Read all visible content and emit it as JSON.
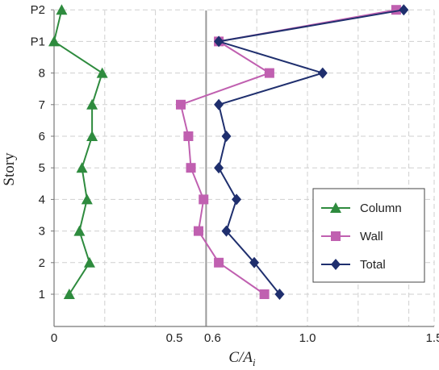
{
  "chart_data": {
    "type": "line",
    "orientation": "horizontal-value-axis",
    "xlabel_main": "C/A",
    "xlabel_sub": "i",
    "ylabel": "Story",
    "xlim": [
      0,
      1.5
    ],
    "x_ticks": [
      {
        "value": 0,
        "label": "0"
      },
      {
        "value": 0.5,
        "label": "0.5"
      },
      {
        "value": 0.6,
        "label": "0.6"
      },
      {
        "value": 1.0,
        "label": "1.0"
      },
      {
        "value": 1.5,
        "label": "1.5"
      }
    ],
    "categories": [
      "1",
      "2",
      "3",
      "4",
      "5",
      "6",
      "7",
      "8",
      "P1",
      "P2"
    ],
    "reference_line": {
      "x": 0.6,
      "color": "#999999"
    },
    "grid": true,
    "legend_position": "bottom-right",
    "series": [
      {
        "name": "Column",
        "color": "#2e8b3e",
        "marker": "triangle",
        "values": [
          0.06,
          0.14,
          0.1,
          0.13,
          0.11,
          0.15,
          0.15,
          0.19,
          0.0,
          0.03
        ]
      },
      {
        "name": "Wall",
        "color": "#c060b0",
        "marker": "square",
        "values": [
          0.83,
          0.65,
          0.57,
          0.59,
          0.54,
          0.53,
          0.5,
          0.85,
          0.65,
          1.35
        ]
      },
      {
        "name": "Total",
        "color": "#1f2f6e",
        "marker": "diamond",
        "values": [
          0.89,
          0.79,
          0.68,
          0.72,
          0.65,
          0.68,
          0.65,
          1.06,
          0.65,
          1.38
        ]
      }
    ]
  }
}
